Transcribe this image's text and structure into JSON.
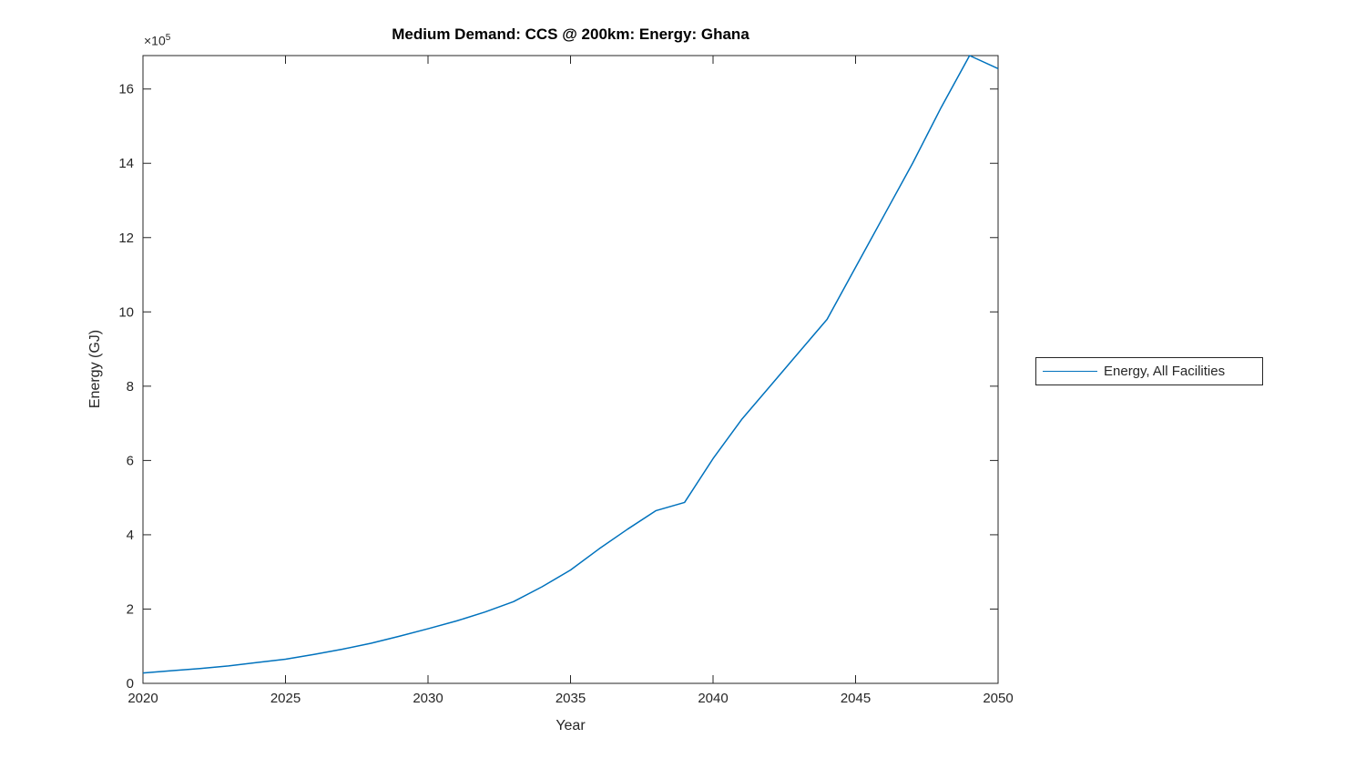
{
  "figure": {
    "title": "Medium Demand: CCS @ 200km: Energy: Ghana",
    "background_color": "#ffffff"
  },
  "chart_data": {
    "type": "line",
    "title": "Medium Demand: CCS @ 200km: Energy: Ghana",
    "xlabel": "Year",
    "ylabel": "Energy (GJ)",
    "y_exponent": {
      "base": "×10",
      "power": "5"
    },
    "values_unit": "1e5 GJ",
    "grid": false,
    "legend_position": "right-outside",
    "xlim": [
      2020,
      2050
    ],
    "ylim": [
      0,
      16.9
    ],
    "xticks": [
      2020,
      2025,
      2030,
      2035,
      2040,
      2045,
      2050
    ],
    "yticks": [
      0,
      2,
      4,
      6,
      8,
      10,
      12,
      14,
      16
    ],
    "x": [
      2020,
      2021,
      2022,
      2023,
      2024,
      2025,
      2026,
      2027,
      2028,
      2029,
      2030,
      2031,
      2032,
      2033,
      2034,
      2035,
      2036,
      2037,
      2038,
      2039,
      2040,
      2041,
      2042,
      2043,
      2044,
      2045,
      2046,
      2047,
      2048,
      2049,
      2050
    ],
    "series": [
      {
        "name": "Energy, All Facilities",
        "color": "#0072BD",
        "values": [
          0.28,
          0.34,
          0.4,
          0.47,
          0.56,
          0.65,
          0.78,
          0.92,
          1.08,
          1.27,
          1.47,
          1.68,
          1.92,
          2.2,
          2.6,
          3.05,
          3.62,
          4.15,
          4.65,
          4.87,
          6.05,
          7.1,
          8.0,
          8.9,
          9.8,
          11.2,
          12.6,
          14.0,
          15.5,
          16.9,
          16.55
        ]
      }
    ]
  },
  "legend": {
    "entries": [
      {
        "label": "Energy, All Facilities",
        "color": "#0072BD"
      }
    ]
  },
  "colors": {
    "line": "#0072BD",
    "axis": "#262626",
    "tick_text": "#262626",
    "title_text": "#000000",
    "background": "#ffffff"
  }
}
